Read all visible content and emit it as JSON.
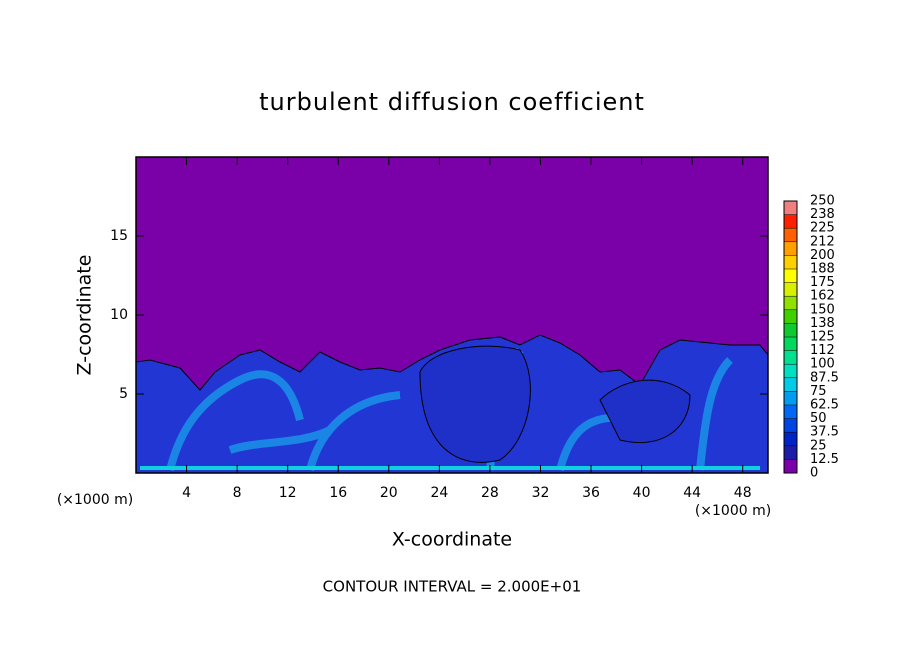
{
  "chart_data": {
    "type": "contour",
    "title": "turbulent diffusion coefficient",
    "xlabel": "X-coordinate",
    "ylabel": "Z-coordinate",
    "x_unit_label": "(×1000 m)",
    "footnote": "CONTOUR INTERVAL = 2.000E+01",
    "xlim": [
      0,
      50
    ],
    "xticks": [
      4,
      8,
      12,
      16,
      20,
      24,
      28,
      32,
      36,
      40,
      44,
      48
    ],
    "ylim": [
      0,
      20
    ],
    "yticks": [
      5,
      10,
      15
    ],
    "colorbar": {
      "ticks": [
        0,
        12.5,
        25,
        37.5,
        50,
        62.5,
        75,
        87.5,
        100,
        {
          "value": 112.5,
          "label": "112"
        },
        125,
        {
          "value": 137.5,
          "label": "138"
        },
        150,
        {
          "value": 162.5,
          "label": "162"
        },
        175,
        {
          "value": 187.5,
          "label": "188"
        },
        200,
        {
          "value": 212.5,
          "label": "212"
        },
        225,
        {
          "value": 237.5,
          "label": "238"
        },
        250
      ],
      "colors": [
        "#7a00a8",
        "#1c1ca8",
        "#0024c8",
        "#0044e4",
        "#0068f4",
        "#009cf0",
        "#00cce8",
        "#00e0c0",
        "#00e090",
        "#00d860",
        "#10c830",
        "#40d000",
        "#90e000",
        "#d8f000",
        "#ffff00",
        "#ffd000",
        "#ffa000",
        "#ff6000",
        "#ff2000",
        "#f08080"
      ]
    }
  }
}
